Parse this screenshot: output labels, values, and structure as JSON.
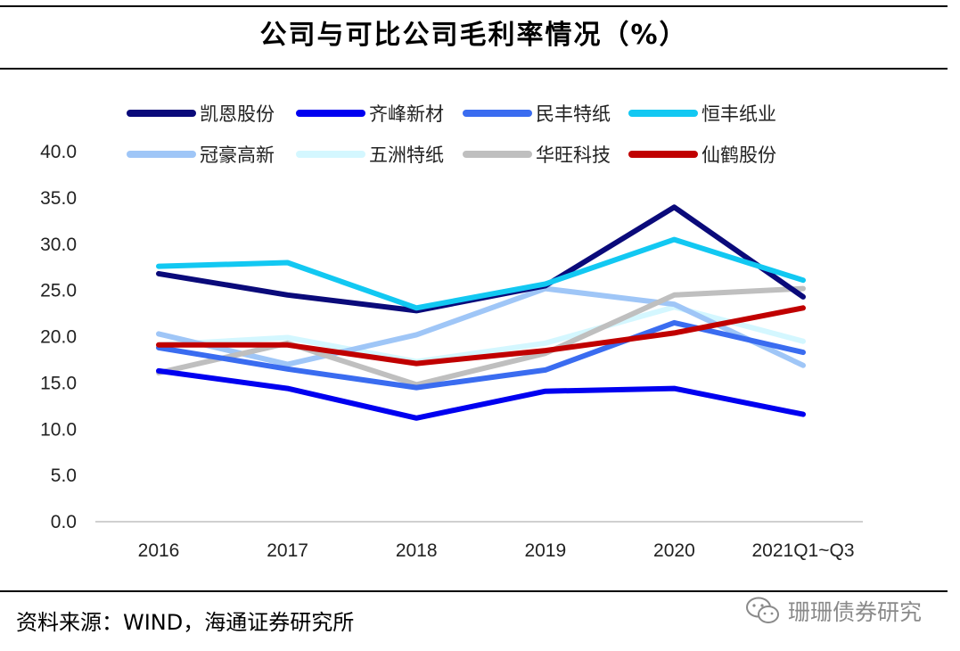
{
  "title": "公司与可比公司毛利率情况（%）",
  "source": "资料来源：WIND，海通证券研究所",
  "watermark": "珊珊债券研究",
  "chart_data": {
    "type": "line",
    "title": "公司与可比公司毛利率情况（%）",
    "categories": [
      "2016",
      "2017",
      "2018",
      "2019",
      "2020",
      "2021Q1~Q3"
    ],
    "ylim": [
      0,
      40
    ],
    "yticks": [
      "0.0",
      "5.0",
      "10.0",
      "15.0",
      "20.0",
      "25.0",
      "30.0",
      "35.0",
      "40.0"
    ],
    "xlabel": "",
    "ylabel": "",
    "legend_position": "top",
    "series": [
      {
        "name": "凯恩股份",
        "color": "#0a0a7a",
        "values": [
          26.8,
          24.5,
          22.8,
          25.5,
          34.0,
          24.3
        ]
      },
      {
        "name": "齐峰新材",
        "color": "#0000f0",
        "values": [
          16.3,
          14.4,
          11.2,
          14.1,
          14.4,
          11.6
        ]
      },
      {
        "name": "民丰特纸",
        "color": "#3a6cf0",
        "values": [
          18.8,
          16.5,
          14.5,
          16.4,
          21.5,
          18.3
        ]
      },
      {
        "name": "恒丰纸业",
        "color": "#12c8f2",
        "values": [
          27.6,
          28.0,
          23.1,
          25.7,
          30.5,
          26.1
        ]
      },
      {
        "name": "冠豪高新",
        "color": "#9fc6f7",
        "values": [
          20.3,
          17.0,
          20.2,
          25.2,
          23.5,
          16.9
        ]
      },
      {
        "name": "五洲特纸",
        "color": "#d4f7ff",
        "values": [
          19.1,
          19.9,
          17.3,
          19.3,
          23.2,
          19.5
        ]
      },
      {
        "name": "华旺科技",
        "color": "#bfbfbf",
        "values": [
          16.1,
          19.3,
          14.8,
          18.2,
          24.5,
          25.2
        ]
      },
      {
        "name": "仙鹤股份",
        "color": "#c00000",
        "values": [
          19.1,
          19.1,
          17.1,
          18.5,
          20.4,
          23.1
        ]
      }
    ]
  }
}
